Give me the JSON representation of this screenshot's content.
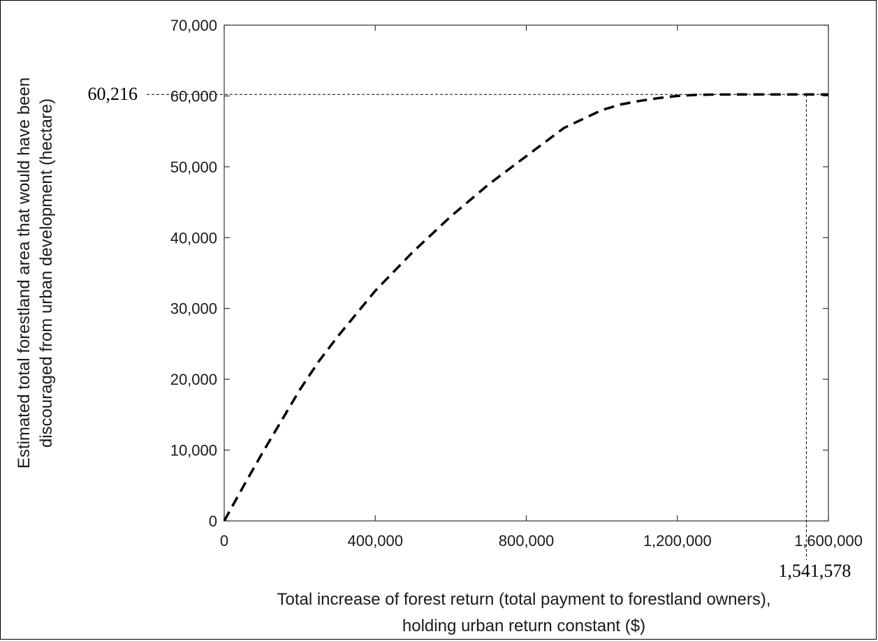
{
  "chart_data": {
    "type": "line",
    "title": "",
    "xlabel_lines": [
      "Total increase of forest return (total payment to forestland owners),",
      "holding urban return constant ($)"
    ],
    "ylabel_lines": [
      "Estimated total forestland area that would have been",
      "discouraged from urban development (hectare)"
    ],
    "xlim": [
      0,
      1600000
    ],
    "ylim": [
      0,
      70000
    ],
    "x_ticks": [
      0,
      400000,
      800000,
      1200000,
      1600000
    ],
    "x_tick_labels": [
      "0",
      "400,000",
      "800,000",
      "1,200,000",
      "1,600,000"
    ],
    "y_ticks": [
      0,
      10000,
      20000,
      30000,
      40000,
      50000,
      60000,
      70000
    ],
    "y_tick_labels": [
      "0",
      "10,000",
      "20,000",
      "30,000",
      "40,000",
      "50,000",
      "60,000",
      "70,000"
    ],
    "grid": false,
    "series": [
      {
        "line_style": "dashed",
        "color": "#000000",
        "x": [
          0,
          50000,
          100000,
          150000,
          200000,
          250000,
          300000,
          400000,
          500000,
          600000,
          700000,
          800000,
          900000,
          1000000,
          1050000,
          1100000,
          1150000,
          1200000,
          1250000,
          1300000,
          1400000,
          1500000,
          1541578,
          1600000
        ],
        "y": [
          0,
          4800,
          9500,
          14000,
          18500,
          22500,
          26000,
          32500,
          38000,
          43000,
          47500,
          51500,
          55500,
          58000,
          58800,
          59300,
          59700,
          60000,
          60150,
          60200,
          60216,
          60216,
          60216,
          60216
        ]
      }
    ],
    "annotations": [
      {
        "text": "60,216",
        "axis": "y",
        "value": 60216
      },
      {
        "text": "1,541,578",
        "axis": "x",
        "value": 1541578
      }
    ]
  }
}
